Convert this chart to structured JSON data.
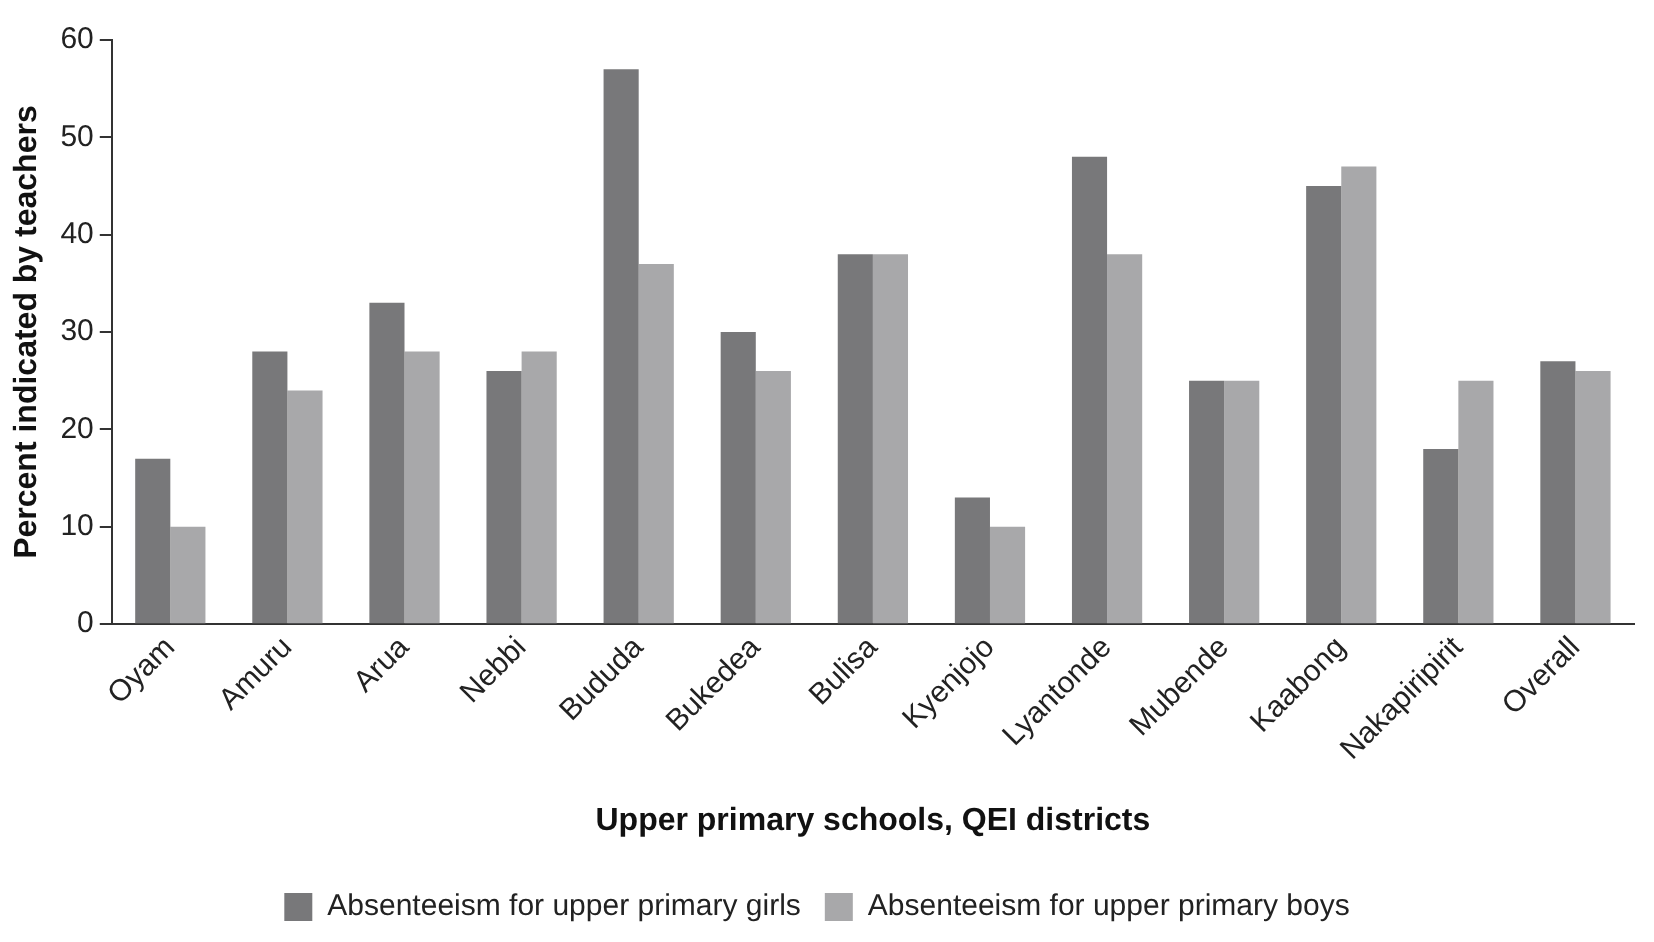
{
  "chart_data": {
    "type": "bar",
    "xlabel": "Upper primary schools, QEI districts",
    "ylabel": "Percent indicated by teachers",
    "categories": [
      "Oyam",
      "Amuru",
      "Arua",
      "Nebbi",
      "Bududa",
      "Bukedea",
      "Bulisa",
      "Kyenjojo",
      "Lyantonde",
      "Mubende",
      "Kaabong",
      "Nakapiripirit",
      "Overall"
    ],
    "series": [
      {
        "name": "Absenteeism for upper primary girls",
        "color": "#78787a",
        "values": [
          17,
          28,
          33,
          26,
          57,
          30,
          38,
          13,
          48,
          25,
          45,
          18,
          27
        ]
      },
      {
        "name": "Absenteeism for upper primary boys",
        "color": "#a8a8aa",
        "values": [
          10,
          24,
          28,
          28,
          37,
          26,
          38,
          10,
          38,
          25,
          47,
          25,
          26
        ]
      }
    ],
    "ylim": [
      0,
      60
    ],
    "yticks": [
      0,
      10,
      20,
      30,
      40,
      50,
      60
    ],
    "grid": false,
    "legend": "bottom"
  }
}
